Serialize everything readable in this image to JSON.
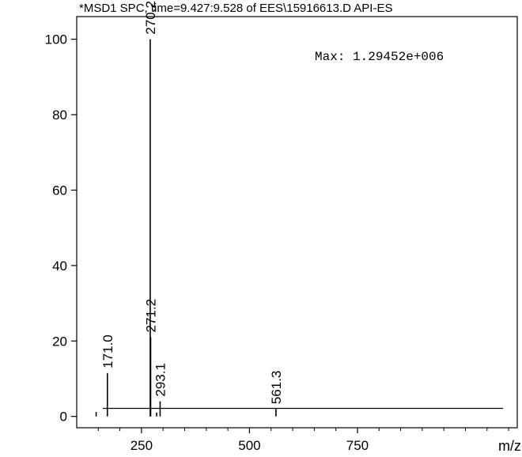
{
  "chart_data": {
    "type": "bar",
    "title": "*MSD1 SPC, time=9.427:9.528 of EES\\15916613.D   API-ES",
    "annotation": "Max: 1.29452e+006",
    "xlabel": "m/z",
    "ylabel": "",
    "xlim": [
      100,
      1120
    ],
    "ylim": [
      -3,
      106
    ],
    "x_ticks": [
      250,
      500,
      750
    ],
    "x_tick_labels": [
      "250",
      "500",
      "750"
    ],
    "y_ticks": [
      0,
      20,
      40,
      60,
      80,
      100
    ],
    "y_tick_labels": [
      "0",
      "20",
      "40",
      "60",
      "80",
      "100"
    ],
    "grid": false,
    "legend": "none",
    "series": [
      {
        "peaks": [
          {
            "mz": 171.0,
            "intensity": 11.5,
            "label": "171.0"
          },
          {
            "mz": 270.2,
            "intensity": 100,
            "label": "270.2"
          },
          {
            "mz": 271.2,
            "intensity": 21,
            "label": "271.2"
          },
          {
            "mz": 293.1,
            "intensity": 4,
            "label": "293.1"
          },
          {
            "mz": 561.3,
            "intensity": 2,
            "label": "561.3"
          },
          {
            "mz": 145,
            "intensity": 1.2,
            "label": ""
          },
          {
            "mz": 285,
            "intensity": 1.0,
            "label": ""
          }
        ]
      }
    ]
  }
}
